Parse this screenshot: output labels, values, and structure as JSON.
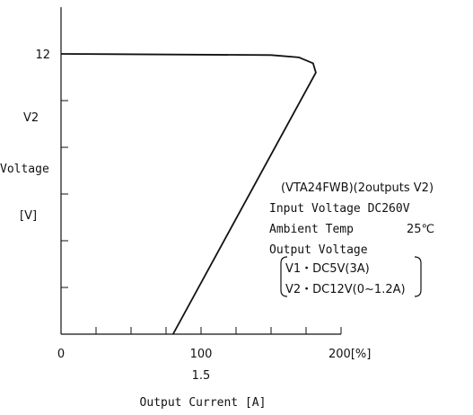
{
  "chart_data": {
    "type": "line",
    "title": "",
    "ylabel_lines": [
      "V2",
      "Voltage",
      "[V]"
    ],
    "xlabel": "Output Current [A]",
    "x_unit": "[%]",
    "x_ticks": [
      {
        "value": 0,
        "label": "0"
      },
      {
        "value": 100,
        "label": "100"
      },
      {
        "value": 200,
        "label": "200[%]"
      }
    ],
    "x_secondary_ticks": [
      {
        "value": 100,
        "label": "1.5"
      }
    ],
    "y_ticks": [
      {
        "value": 12,
        "label": "12"
      }
    ],
    "xlim": [
      0,
      200
    ],
    "ylim": [
      0,
      14
    ],
    "grid": false,
    "series": [
      {
        "name": "",
        "color": "#111111",
        "points": [
          [
            0,
            12.0
          ],
          [
            150,
            11.95
          ],
          [
            170,
            11.85
          ],
          [
            180,
            11.6
          ],
          [
            182,
            11.2
          ],
          [
            80,
            0
          ]
        ]
      }
    ],
    "annotation": {
      "model": "(VTA24FWB)(2outputs V2)",
      "input_voltage": "Input Voltage DC260V",
      "ambient_label": "Ambient Temp",
      "ambient_value": "25℃",
      "output_voltage": "Output Voltage",
      "v1": "V1・DC5V(3A)",
      "v2": "V2・DC12V(0~1.2A)"
    }
  }
}
